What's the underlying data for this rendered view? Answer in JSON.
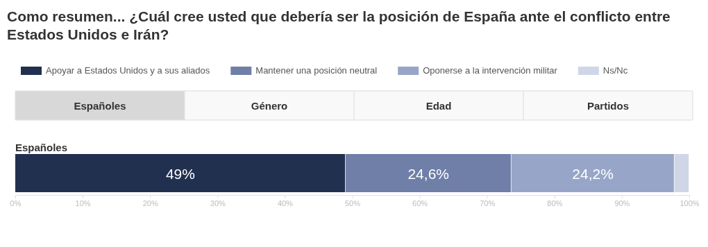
{
  "chart_data": {
    "type": "bar",
    "orientation": "horizontal",
    "stacked": true,
    "title": "Como resumen... ¿Cuál cree usted que debería ser la posición de España ante el conflicto entre Estados Unidos e Irán?",
    "categories": [
      "Españoles"
    ],
    "series": [
      {
        "name": "Apoyar a Estados Unidos y a sus aliados",
        "color": "#223050",
        "values": [
          49
        ],
        "value_labels": [
          "49%"
        ]
      },
      {
        "name": "Mantener una posición neutral",
        "color": "#6f7fa8",
        "values": [
          24.6
        ],
        "value_labels": [
          "24,6%"
        ]
      },
      {
        "name": "Oponerse a la intervención militar",
        "color": "#97a6c8",
        "values": [
          24.2
        ],
        "value_labels": [
          "24,2%"
        ]
      },
      {
        "name": "Ns/Nc",
        "color": "#cfd6e8",
        "values": [
          2.2
        ],
        "value_labels": [
          null
        ]
      }
    ],
    "xlim": [
      0,
      100
    ],
    "xticks": [
      {
        "value": 0,
        "label": "0%"
      },
      {
        "value": 10,
        "label": "10%"
      },
      {
        "value": 20,
        "label": "20%"
      },
      {
        "value": 30,
        "label": "30%"
      },
      {
        "value": 40,
        "label": "40%"
      },
      {
        "value": 50,
        "label": "50%"
      },
      {
        "value": 60,
        "label": "60%"
      },
      {
        "value": 70,
        "label": "70%"
      },
      {
        "value": 80,
        "label": "80%"
      },
      {
        "value": 90,
        "label": "90%"
      },
      {
        "value": 100,
        "label": "100%"
      }
    ],
    "legend": "top",
    "annotations": [
      "Españoles",
      "Género",
      "Edad",
      "Partidos"
    ]
  }
}
